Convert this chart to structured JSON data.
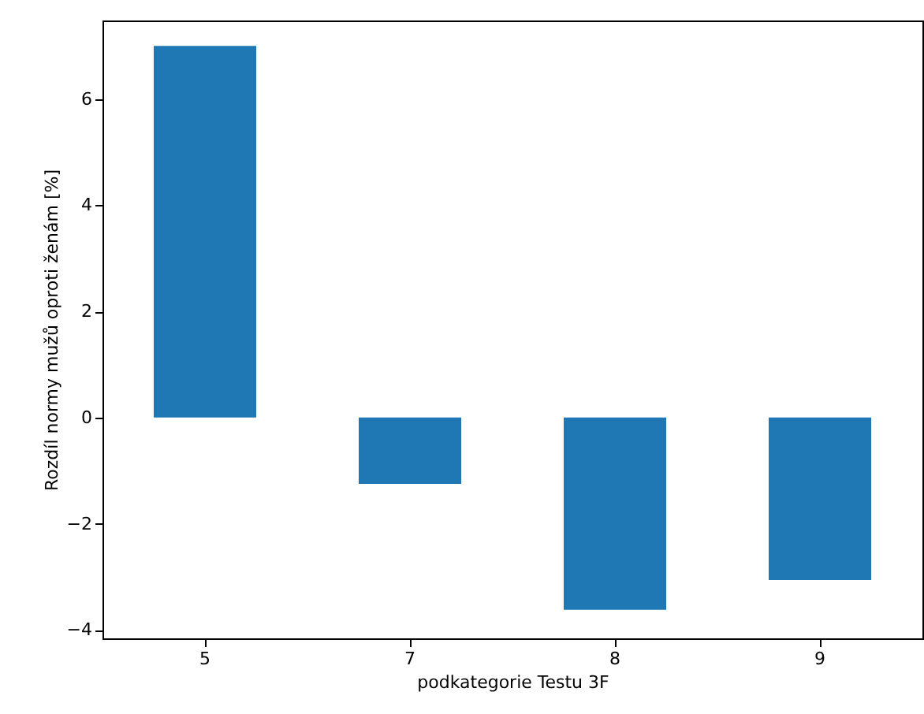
{
  "chart_data": {
    "type": "bar",
    "xlabel": "podkategorie Testu 3F",
    "ylabel": "Rozdíl normy mužů oproti ženám [%]",
    "categories": [
      "5",
      "7",
      "8",
      "9"
    ],
    "series": [
      {
        "color": "#1f77b4",
        "values": [
          7.0,
          -1.25,
          -3.62,
          -3.06
        ]
      }
    ],
    "ylim": [
      -4.16,
      7.48
    ],
    "yticks": [
      -4,
      -2,
      0,
      2,
      4,
      6
    ],
    "grid": false
  }
}
